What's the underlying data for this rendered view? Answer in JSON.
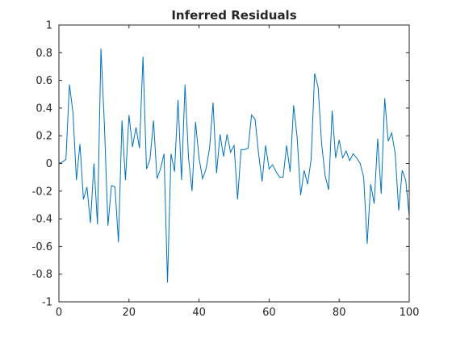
{
  "chart_data": {
    "type": "line",
    "title": "Inferred Residuals",
    "xlabel": "",
    "ylabel": "",
    "xlim": [
      0,
      100
    ],
    "ylim": [
      -1,
      1
    ],
    "xticks": [
      0,
      20,
      40,
      60,
      80,
      100
    ],
    "yticks": [
      -1,
      -0.8,
      -0.6,
      -0.4,
      -0.2,
      0,
      0.2,
      0.4,
      0.6,
      0.8,
      1
    ],
    "grid": false,
    "line_color": "#0072bd",
    "series": [
      {
        "values": [
          0,
          0.01,
          0.03,
          0.57,
          0.37,
          -0.12,
          0.14,
          -0.26,
          -0.17,
          -0.43,
          0.0,
          -0.44,
          0.83,
          0.27,
          -0.45,
          -0.16,
          -0.17,
          -0.57,
          0.31,
          -0.12,
          0.35,
          0.12,
          0.26,
          0.11,
          0.77,
          -0.04,
          0.03,
          0.31,
          -0.11,
          -0.04,
          0.07,
          -0.86,
          0.07,
          -0.06,
          0.46,
          -0.12,
          0.57,
          0.04,
          -0.2,
          0.3,
          0.04,
          -0.11,
          -0.04,
          0.11,
          0.44,
          -0.07,
          0.21,
          0.05,
          0.21,
          0.08,
          0.13,
          -0.26,
          0.1,
          0.1,
          0.11,
          0.35,
          0.32,
          0.07,
          -0.13,
          0.13,
          -0.04,
          -0.01,
          -0.06,
          -0.1,
          -0.1,
          0.13,
          -0.06,
          0.42,
          0.19,
          -0.23,
          -0.05,
          -0.15,
          0.03,
          0.65,
          0.55,
          0.14,
          -0.09,
          -0.19,
          0.38,
          0.04,
          0.17,
          0.04,
          0.09,
          0.02,
          0.07,
          0.04,
          0.0,
          -0.1,
          -0.58,
          -0.15,
          -0.29,
          0.18,
          -0.22,
          0.47,
          0.16,
          0.22,
          0.07,
          -0.34,
          -0.05,
          -0.12,
          -0.38
        ]
      }
    ]
  }
}
